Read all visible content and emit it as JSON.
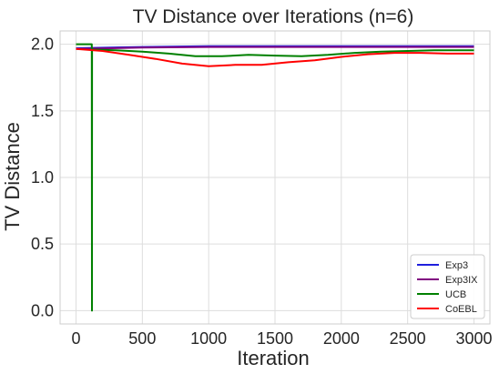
{
  "chart_data": {
    "type": "line",
    "title": "TV Distance over Iterations (n=6)",
    "xlabel": "Iteration",
    "ylabel": "TV Distance",
    "xlim": [
      -120,
      3120
    ],
    "ylim": [
      -0.1,
      2.1
    ],
    "xticks": [
      0,
      500,
      1000,
      1500,
      2000,
      2500,
      3000
    ],
    "yticks": [
      0.0,
      0.5,
      1.0,
      1.5,
      2.0
    ],
    "xtick_labels": [
      "0",
      "500",
      "1000",
      "1500",
      "2000",
      "2500",
      "3000"
    ],
    "ytick_labels": [
      "0.0",
      "0.5",
      "1.0",
      "1.5",
      "2.0"
    ],
    "grid": true,
    "legend_position": "lower-right",
    "series": [
      {
        "name": "Exp3",
        "color": "#1f1fdd",
        "x": [
          0,
          500,
          1000,
          1500,
          2000,
          2500,
          3000
        ],
        "y": [
          1.97,
          1.98,
          1.985,
          1.985,
          1.985,
          1.985,
          1.985
        ]
      },
      {
        "name": "Exp3IX",
        "color": "#800080",
        "x": [
          0,
          500,
          1000,
          1500,
          2000,
          2500,
          3000
        ],
        "y": [
          1.965,
          1.975,
          1.98,
          1.98,
          1.98,
          1.98,
          1.98
        ]
      },
      {
        "name": "UCB",
        "color": "#008000",
        "x": [
          0,
          119,
          120,
          121,
          125,
          130,
          300,
          500,
          700,
          900,
          1100,
          1300,
          1500,
          1700,
          1900,
          2100,
          2300,
          2500,
          2700,
          2900,
          3000
        ],
        "y": [
          2.0,
          2.0,
          0.0,
          1.96,
          1.96,
          1.96,
          1.955,
          1.945,
          1.93,
          1.91,
          1.91,
          1.92,
          1.915,
          1.91,
          1.92,
          1.935,
          1.945,
          1.95,
          1.955,
          1.955,
          1.955
        ]
      },
      {
        "name": "CoEBL",
        "color": "#ff0000",
        "x": [
          0,
          200,
          400,
          600,
          800,
          1000,
          1200,
          1400,
          1600,
          1800,
          2000,
          2200,
          2400,
          2600,
          2800,
          3000
        ],
        "y": [
          1.965,
          1.95,
          1.92,
          1.89,
          1.855,
          1.835,
          1.845,
          1.845,
          1.865,
          1.88,
          1.905,
          1.925,
          1.935,
          1.935,
          1.93,
          1.93
        ]
      }
    ]
  }
}
